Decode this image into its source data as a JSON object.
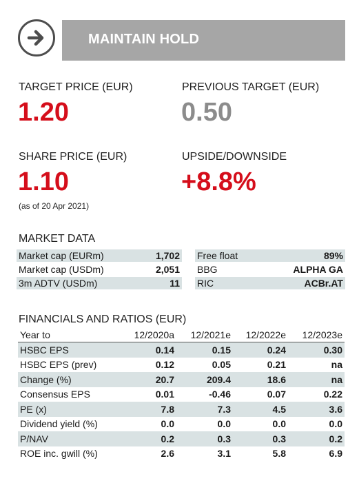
{
  "rating": {
    "label": "MAINTAIN HOLD",
    "icon": "right-arrow-icon"
  },
  "target_price": {
    "label": "TARGET PRICE (EUR)",
    "value": "1.20"
  },
  "previous_target": {
    "label": "PREVIOUS TARGET (EUR)",
    "value": "0.50"
  },
  "share_price": {
    "label": "SHARE PRICE (EUR)",
    "value": "1.10",
    "as_of": "(as of 20 Apr 2021)"
  },
  "upside": {
    "label": "UPSIDE/DOWNSIDE",
    "value": "+8.8%"
  },
  "market_data": {
    "title": "MARKET DATA",
    "left": [
      {
        "label": "Market cap (EURm)",
        "value": "1,702"
      },
      {
        "label": "Market cap (USDm)",
        "value": "2,051"
      },
      {
        "label": "3m ADTV (USDm)",
        "value": "11"
      }
    ],
    "right": [
      {
        "label": "Free float",
        "value": "89%"
      },
      {
        "label": "BBG",
        "value": "ALPHA GA"
      },
      {
        "label": "RIC",
        "value": "ACBr.AT"
      }
    ]
  },
  "financials": {
    "title": "FINANCIALS AND RATIOS (EUR)",
    "header": [
      "Year to",
      "12/2020a",
      "12/2021e",
      "12/2022e",
      "12/2023e"
    ],
    "rows": [
      [
        "HSBC EPS",
        "0.14",
        "0.15",
        "0.24",
        "0.30"
      ],
      [
        "HSBC EPS (prev)",
        "0.12",
        "0.05",
        "0.21",
        "na"
      ],
      [
        "Change (%)",
        "20.7",
        "209.4",
        "18.6",
        "na"
      ],
      [
        "Consensus EPS",
        "0.01",
        "-0.46",
        "0.07",
        "0.22"
      ],
      [
        "PE (x)",
        "7.8",
        "7.3",
        "4.5",
        "3.6"
      ],
      [
        "Dividend yield (%)",
        "0.0",
        "0.0",
        "0.0",
        "0.0"
      ],
      [
        "P/NAV",
        "0.2",
        "0.3",
        "0.3",
        "0.2"
      ],
      [
        "ROE inc. gwill (%)",
        "2.6",
        "3.1",
        "5.8",
        "6.9"
      ]
    ]
  },
  "colors": {
    "accent_red": "#d50e1b",
    "muted_grey": "#8c8c8c",
    "band": "#a6a6a6",
    "row_shade": "#d9e2e3"
  }
}
